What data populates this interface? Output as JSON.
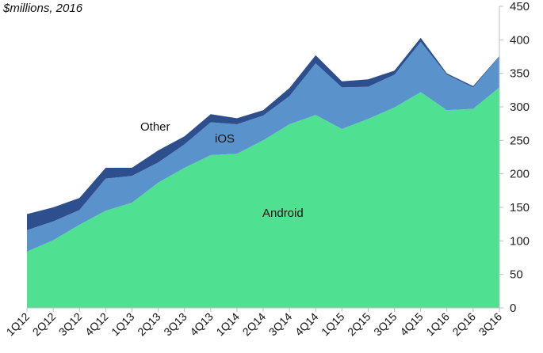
{
  "chart_data": {
    "type": "area",
    "stacked": true,
    "title": "",
    "units_label": "$millions, 2016",
    "xlabel": "",
    "ylabel": "$millions, 2016",
    "ylim": [
      0,
      450
    ],
    "yticks": [
      0,
      50,
      100,
      150,
      200,
      250,
      300,
      350,
      400,
      450
    ],
    "y_axis_position": "right",
    "grid": false,
    "legend": "inline labels",
    "categories": [
      "1Q12",
      "2Q12",
      "3Q12",
      "4Q12",
      "1Q13",
      "2Q13",
      "3Q13",
      "4Q13",
      "1Q14",
      "2Q14",
      "3Q14",
      "4Q14",
      "1Q15",
      "2Q15",
      "3Q15",
      "4Q15",
      "1Q16",
      "2Q16",
      "3Q16"
    ],
    "series": [
      {
        "name": "Android",
        "color": "#50E091",
        "values": [
          84,
          101,
          124,
          145,
          157,
          187,
          209,
          228,
          230,
          250,
          274,
          288,
          267,
          282,
          299,
          322,
          295,
          297,
          329
        ]
      },
      {
        "name": "iOS",
        "color": "#5A93CB",
        "values": [
          32,
          28,
          22,
          48,
          40,
          30,
          35,
          49,
          44,
          37,
          42,
          77,
          62,
          48,
          49,
          75,
          53,
          32,
          46
        ]
      },
      {
        "name": "Other",
        "color": "#2D4F8E",
        "values": [
          24,
          21,
          18,
          16,
          12,
          18,
          12,
          12,
          9,
          8,
          12,
          12,
          9,
          11,
          6,
          6,
          2,
          2,
          1
        ]
      }
    ],
    "annotations": [
      {
        "text": "Android",
        "series": "Android"
      },
      {
        "text": "iOS",
        "series": "iOS"
      },
      {
        "text": "Other",
        "series": "Other"
      }
    ]
  }
}
